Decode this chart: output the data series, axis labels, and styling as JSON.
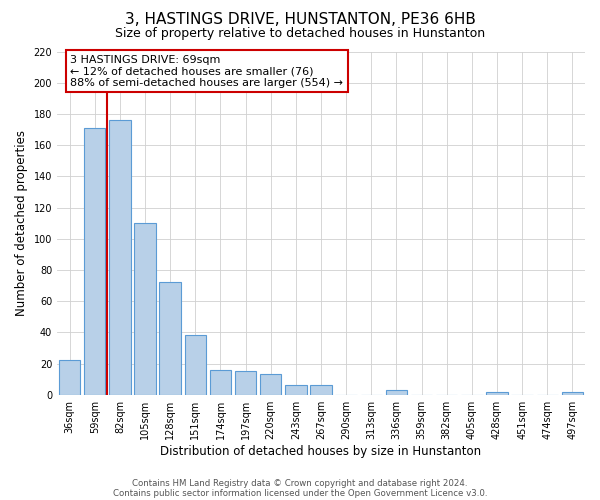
{
  "title": "3, HASTINGS DRIVE, HUNSTANTON, PE36 6HB",
  "subtitle": "Size of property relative to detached houses in Hunstanton",
  "xlabel": "Distribution of detached houses by size in Hunstanton",
  "ylabel": "Number of detached properties",
  "categories": [
    "36sqm",
    "59sqm",
    "82sqm",
    "105sqm",
    "128sqm",
    "151sqm",
    "174sqm",
    "197sqm",
    "220sqm",
    "243sqm",
    "267sqm",
    "290sqm",
    "313sqm",
    "336sqm",
    "359sqm",
    "382sqm",
    "405sqm",
    "428sqm",
    "451sqm",
    "474sqm",
    "497sqm"
  ],
  "values": [
    22,
    171,
    176,
    110,
    72,
    38,
    16,
    15,
    13,
    6,
    6,
    0,
    0,
    3,
    0,
    0,
    0,
    2,
    0,
    0,
    2
  ],
  "bar_color": "#b8d0e8",
  "bar_edge_color": "#5b9bd5",
  "vline_color": "#cc0000",
  "annotation_box_text": "3 HASTINGS DRIVE: 69sqm\n← 12% of detached houses are smaller (76)\n88% of semi-detached houses are larger (554) →",
  "annotation_box_color": "#cc0000",
  "annotation_text_color": "#000000",
  "ylim": [
    0,
    220
  ],
  "yticks": [
    0,
    20,
    40,
    60,
    80,
    100,
    120,
    140,
    160,
    180,
    200,
    220
  ],
  "footer_line1": "Contains HM Land Registry data © Crown copyright and database right 2024.",
  "footer_line2": "Contains public sector information licensed under the Open Government Licence v3.0.",
  "background_color": "#ffffff",
  "grid_color": "#d0d0d0"
}
